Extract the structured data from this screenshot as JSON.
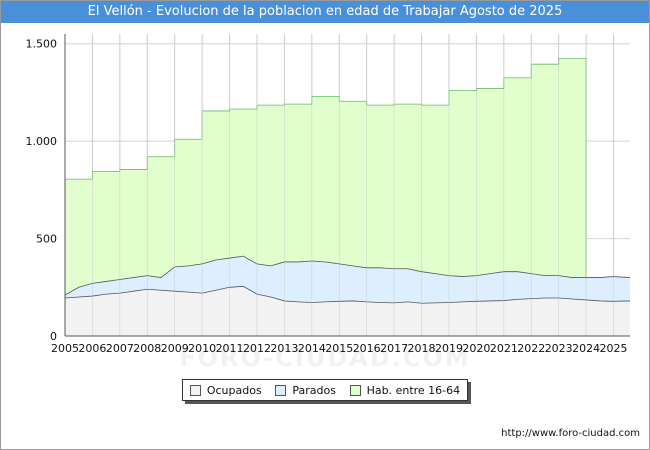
{
  "chart_data": {
    "type": "area",
    "title": "El Vellón - Evolucion de la poblacion en edad de Trabajar Agosto de 2025",
    "xlabel": "",
    "ylabel": "",
    "ylim": [
      0,
      1550
    ],
    "xlim": [
      2005,
      2025.6
    ],
    "y_ticks": [
      0,
      500,
      1000,
      1500
    ],
    "y_tick_labels": [
      "0",
      "500",
      "1.000",
      "1.500"
    ],
    "x_ticks": [
      2005,
      2006,
      2007,
      2008,
      2009,
      2010,
      2011,
      2012,
      2013,
      2014,
      2015,
      2016,
      2017,
      2018,
      2019,
      2020,
      2021,
      2022,
      2023,
      2024,
      2025
    ],
    "x_tick_labels": [
      "2005",
      "2006",
      "2007",
      "2008",
      "2009",
      "2010",
      "2011",
      "2012",
      "2013",
      "2014",
      "2015",
      "2016",
      "2017",
      "2018",
      "2019",
      "2020",
      "2021",
      "2022",
      "2023",
      "2024",
      "2025"
    ],
    "grid": true,
    "legend_position": "bottom-center",
    "series": [
      {
        "name": "Ocupados",
        "color": "#f2f2f2",
        "line_color": "#555555",
        "x": [
          2005,
          2005.5,
          2006,
          2006.5,
          2007,
          2007.5,
          2008,
          2008.5,
          2009,
          2009.5,
          2010,
          2010.5,
          2011,
          2011.5,
          2012,
          2012.5,
          2013,
          2013.5,
          2014,
          2014.5,
          2015,
          2015.5,
          2016,
          2016.5,
          2017,
          2017.5,
          2018,
          2018.5,
          2019,
          2019.5,
          2020,
          2020.5,
          2021,
          2021.5,
          2022,
          2022.5,
          2023,
          2023.5,
          2024,
          2024.5,
          2025,
          2025.6
        ],
        "values": [
          195,
          200,
          205,
          215,
          220,
          230,
          240,
          235,
          230,
          225,
          220,
          235,
          250,
          255,
          215,
          200,
          180,
          175,
          172,
          175,
          178,
          180,
          175,
          172,
          170,
          175,
          168,
          170,
          172,
          175,
          178,
          180,
          182,
          188,
          192,
          195,
          195,
          190,
          185,
          180,
          178,
          180
        ]
      },
      {
        "name": "Parados",
        "color": "#ddeeff",
        "line_color": "#555555",
        "x": [
          2005,
          2005.5,
          2006,
          2006.5,
          2007,
          2007.5,
          2008,
          2008.5,
          2009,
          2009.5,
          2010,
          2010.5,
          2011,
          2011.5,
          2012,
          2012.5,
          2013,
          2013.5,
          2014,
          2014.5,
          2015,
          2015.5,
          2016,
          2016.5,
          2017,
          2017.5,
          2018,
          2018.5,
          2019,
          2019.5,
          2020,
          2020.5,
          2021,
          2021.5,
          2022,
          2022.5,
          2023,
          2023.5,
          2024,
          2024.5,
          2025,
          2025.6
        ],
        "values": [
          210,
          250,
          270,
          280,
          290,
          300,
          310,
          300,
          355,
          360,
          370,
          390,
          400,
          410,
          370,
          360,
          380,
          380,
          385,
          380,
          370,
          360,
          350,
          350,
          345,
          345,
          330,
          320,
          310,
          305,
          310,
          320,
          330,
          330,
          320,
          310,
          310,
          300,
          300,
          300,
          305,
          300
        ]
      },
      {
        "name": "Hab. entre 16-64",
        "color": "#e0ffcc",
        "line_color": "#66bb66",
        "x": [
          2005,
          2006,
          2007,
          2008,
          2009,
          2010,
          2011,
          2012,
          2013,
          2014,
          2015,
          2016,
          2017,
          2018,
          2019,
          2020,
          2021,
          2022,
          2023,
          2024
        ],
        "values": [
          805,
          845,
          855,
          920,
          1010,
          1155,
          1165,
          1185,
          1190,
          1230,
          1205,
          1185,
          1190,
          1185,
          1260,
          1270,
          1325,
          1395,
          1425,
          0
        ]
      }
    ]
  },
  "legend": {
    "items": [
      {
        "label": "Ocupados",
        "color": "#f2f2f2"
      },
      {
        "label": "Parados",
        "color": "#ddeeff"
      },
      {
        "label": "Hab. entre 16-64",
        "color": "#e0ffcc"
      }
    ]
  },
  "watermark": "FORO-CIUDAD.COM",
  "source_url": "http://www.foro-ciudad.com"
}
